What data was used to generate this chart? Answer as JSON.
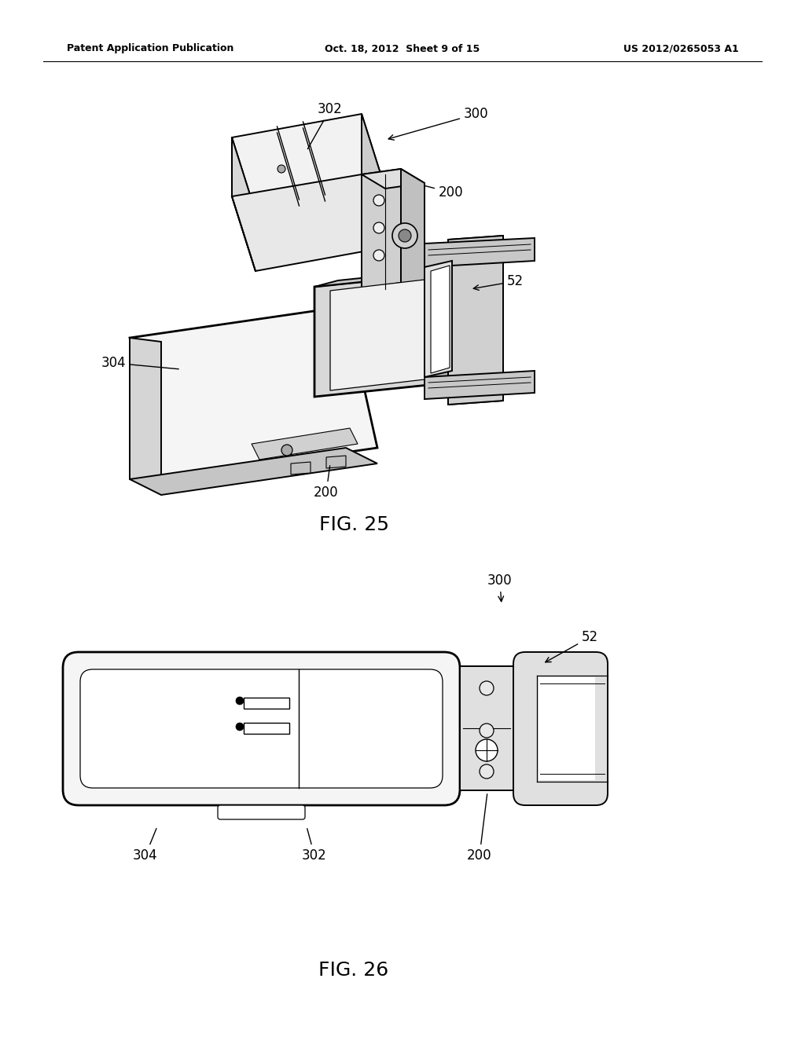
{
  "background_color": "#ffffff",
  "header_left": "Patent Application Publication",
  "header_center": "Oct. 18, 2012  Sheet 9 of 15",
  "header_right": "US 2012/0265053 A1",
  "fig25_label": "FIG. 25",
  "fig26_label": "FIG. 26",
  "text_color": "#000000",
  "line_color": "#000000",
  "lw": 1.4,
  "lw_thick": 2.0
}
